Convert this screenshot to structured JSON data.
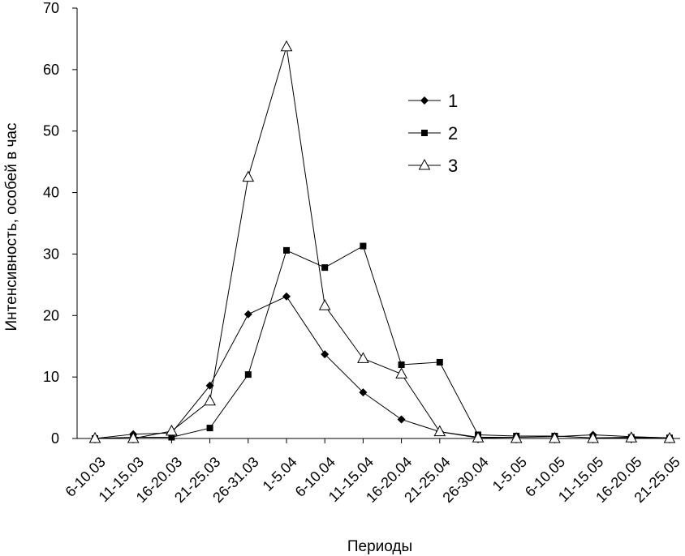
{
  "chart_data": {
    "type": "line",
    "xlabel": "Периоды",
    "ylabel": "Интенсивность, особей в час",
    "ylim": [
      0,
      70
    ],
    "yticks": [
      0,
      10,
      20,
      30,
      40,
      50,
      60,
      70
    ],
    "grid": false,
    "legend_position": "top-right",
    "categories": [
      "6-10.03",
      "11-15.03",
      "16-20.03",
      "21-25.03",
      "26-31.03",
      "1-5.04",
      "6-10.04",
      "11-15.04",
      "16-20.04",
      "21-25.04",
      "26-30.04",
      "1-5.05",
      "6-10.05",
      "11-15.05",
      "16-20.05",
      "21-25.05"
    ],
    "series": [
      {
        "name": "1",
        "marker": "diamond",
        "values": [
          0,
          0.7,
          0.9,
          8.6,
          20.2,
          23.1,
          13.7,
          7.5,
          3.1,
          1.1,
          0.2,
          0.2,
          0.3,
          0.6,
          0.3,
          0.1
        ]
      },
      {
        "name": "2",
        "marker": "square",
        "values": [
          0,
          0.2,
          0.2,
          1.7,
          10.4,
          30.6,
          27.8,
          31.3,
          12.0,
          12.4,
          0.6,
          0.4,
          0.4,
          0.1,
          0.2,
          0.1
        ]
      },
      {
        "name": "3",
        "marker": "triangle",
        "values": [
          0,
          0,
          1.2,
          6.1,
          42.5,
          63.7,
          21.6,
          13.0,
          10.5,
          1.1,
          0.1,
          0,
          0,
          0,
          0.1,
          0
        ]
      }
    ]
  }
}
